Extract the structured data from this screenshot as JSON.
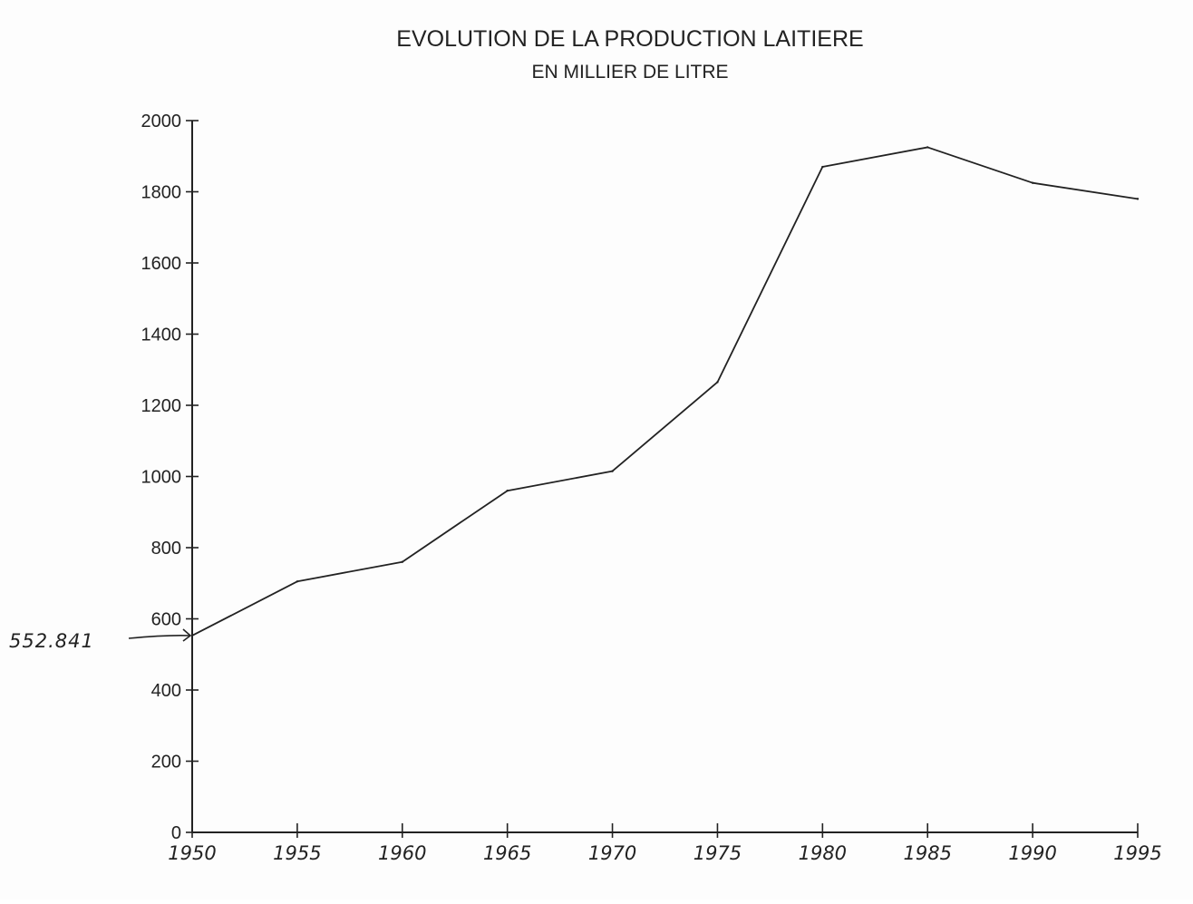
{
  "chart_data": {
    "type": "line",
    "title": "EVOLUTION DE LA PRODUCTION LAITIERE",
    "subtitle": "EN MILLIER DE LITRE",
    "xlabel": "",
    "ylabel": "",
    "x": [
      1950,
      1955,
      1960,
      1965,
      1970,
      1975,
      1980,
      1985,
      1990,
      1995
    ],
    "x_tick_labels": [
      "1950",
      "1955",
      "1960",
      "1965",
      "1970",
      "1975",
      "1980",
      "1985",
      "1990",
      "1995"
    ],
    "series": [
      {
        "values": [
          553,
          705,
          760,
          960,
          1015,
          1265,
          1870,
          1925,
          1825,
          1780
        ]
      }
    ],
    "ylim": [
      0,
      2000
    ],
    "xlim": [
      1950,
      1995
    ],
    "y_ticks": [
      0,
      200,
      400,
      600,
      800,
      1000,
      1200,
      1400,
      1600,
      1800,
      2000
    ],
    "grid": false,
    "legend": "none",
    "annotations": [
      {
        "text": "552.841",
        "x": 1950,
        "y": 552.841,
        "style": "handwritten-arrow"
      }
    ],
    "colors": {
      "line": "#222222",
      "axis": "#222222"
    }
  }
}
